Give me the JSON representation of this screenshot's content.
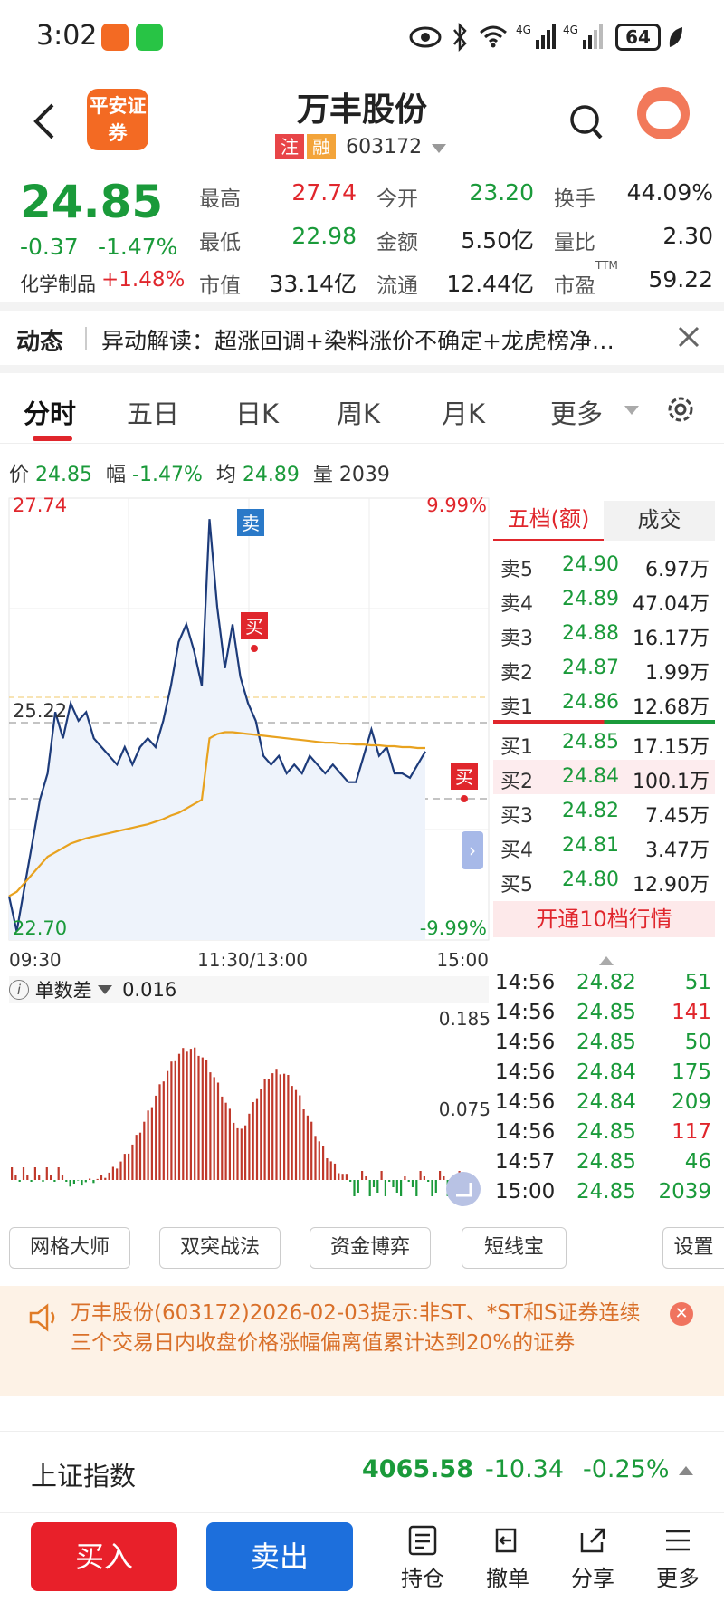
{
  "status_bar": {
    "time": "3:02",
    "battery": "64"
  },
  "nav": {
    "broker_logo": "平安证券",
    "title": "万丰股份",
    "tag_zhu": "注",
    "tag_rong": "融",
    "code": "603172"
  },
  "quote": {
    "price": "24.85",
    "change": "-0.37",
    "change_pct": "-1.47%",
    "sector": "化学制品",
    "sector_pct": "+1.48%",
    "high_label": "最高",
    "high": "27.74",
    "low_label": "最低",
    "low": "22.98",
    "mcap_label": "市值",
    "mcap": "33.14亿",
    "open_label": "今开",
    "open": "23.20",
    "amount_label": "金额",
    "amount": "5.50亿",
    "float_label": "流通",
    "float": "12.44亿",
    "turnover_label": "换手",
    "turnover": "44.09%",
    "vol_ratio_label": "量比",
    "vol_ratio": "2.30",
    "pe_label": "市盈",
    "pe_sup": "TTM",
    "pe": "59.22"
  },
  "news": {
    "label": "动态",
    "text": "异动解读：超涨回调+染料涨价不确定+龙虎榜净…"
  },
  "tabs": [
    "分时",
    "五日",
    "日K",
    "周K",
    "月K",
    "更多"
  ],
  "infoline": {
    "price_label": "价",
    "price": "24.85",
    "range_label": "幅",
    "range": "-1.47%",
    "avg_label": "均",
    "avg": "24.89",
    "vol_label": "量",
    "vol": "2039"
  },
  "chart": {
    "max_label": "27.74",
    "min_label": "22.70",
    "mid_label": "25.22",
    "max_pct": "9.99%",
    "min_pct": "-9.99%",
    "time_start": "09:30",
    "time_mid": "11:30/13:00",
    "time_end": "15:00",
    "sell_marker": "卖",
    "buy_marker": "买",
    "indicator_label": "单数差",
    "indicator_value": "0.016",
    "ind_top": "0.185",
    "ind_mid": "0.075"
  },
  "chart_data": {
    "type": "line",
    "ylim": [
      22.7,
      27.74
    ],
    "price": [
      23.2,
      22.8,
      23.3,
      23.8,
      24.3,
      24.6,
      25.3,
      25.0,
      25.4,
      25.2,
      25.3,
      25.0,
      24.9,
      24.8,
      24.7,
      24.9,
      24.7,
      24.9,
      25.0,
      24.9,
      25.2,
      25.6,
      26.1,
      26.3,
      26.0,
      25.6,
      27.5,
      26.5,
      25.8,
      26.3,
      25.7,
      25.4,
      25.2,
      24.8,
      24.7,
      24.8,
      24.6,
      24.7,
      24.6,
      24.8,
      24.7,
      24.6,
      24.7,
      24.6,
      24.5,
      24.5,
      24.8,
      25.1,
      24.8,
      24.9,
      24.6,
      24.6,
      24.55,
      24.7,
      24.85
    ],
    "avg": [
      23.2,
      23.25,
      23.35,
      23.45,
      23.55,
      23.65,
      23.7,
      23.75,
      23.8,
      23.83,
      23.86,
      23.88,
      23.9,
      23.92,
      23.94,
      23.96,
      23.98,
      24.0,
      24.02,
      24.05,
      24.08,
      24.12,
      24.15,
      24.2,
      24.25,
      24.3,
      25.0,
      25.05,
      25.07,
      25.07,
      25.06,
      25.05,
      25.04,
      25.03,
      25.02,
      25.01,
      25.0,
      24.99,
      24.98,
      24.97,
      24.96,
      24.95,
      24.95,
      24.94,
      24.94,
      24.93,
      24.93,
      24.92,
      24.92,
      24.91,
      24.91,
      24.9,
      24.9,
      24.89,
      24.89
    ]
  },
  "depth": {
    "tab_active": "五档(额)",
    "tab_other": "成交",
    "asks": [
      {
        "label": "卖5",
        "price": "24.90",
        "amount": "6.97万"
      },
      {
        "label": "卖4",
        "price": "24.89",
        "amount": "47.04万"
      },
      {
        "label": "卖3",
        "price": "24.88",
        "amount": "16.17万"
      },
      {
        "label": "卖2",
        "price": "24.87",
        "amount": "1.99万"
      },
      {
        "label": "卖1",
        "price": "24.86",
        "amount": "12.68万"
      }
    ],
    "bids": [
      {
        "label": "买1",
        "price": "24.85",
        "amount": "17.15万"
      },
      {
        "label": "买2",
        "price": "24.84",
        "amount": "100.1万"
      },
      {
        "label": "买3",
        "price": "24.82",
        "amount": "7.45万"
      },
      {
        "label": "买4",
        "price": "24.81",
        "amount": "3.47万"
      },
      {
        "label": "买5",
        "price": "24.80",
        "amount": "12.90万"
      }
    ],
    "open_ten": "开通10档行情"
  },
  "ticks": [
    {
      "time": "14:56",
      "price": "24.82",
      "vol": "51"
    },
    {
      "time": "14:56",
      "price": "24.85",
      "vol": "141"
    },
    {
      "time": "14:56",
      "price": "24.85",
      "vol": "50"
    },
    {
      "time": "14:56",
      "price": "24.84",
      "vol": "175"
    },
    {
      "time": "14:56",
      "price": "24.84",
      "vol": "209"
    },
    {
      "time": "14:56",
      "price": "24.85",
      "vol": "117"
    },
    {
      "time": "14:57",
      "price": "24.85",
      "vol": "46"
    },
    {
      "time": "15:00",
      "price": "24.85",
      "vol": "2039"
    }
  ],
  "tools": [
    "网格大师",
    "双突战法",
    "资金博弈",
    "短线宝",
    "设置"
  ],
  "notice": {
    "text": "万丰股份(603172)2026-02-03提示:非ST、*ST和S证券连续三个交易日内收盘价格涨幅偏离值累计达到20%的证券"
  },
  "index": {
    "name": "上证指数",
    "value": "4065.58",
    "change": "-10.34",
    "pct": "-0.25%"
  },
  "bottom": {
    "buy": "买入",
    "sell": "卖出",
    "hold": "持仓",
    "cancel": "撤单",
    "share": "分享",
    "more": "更多"
  }
}
